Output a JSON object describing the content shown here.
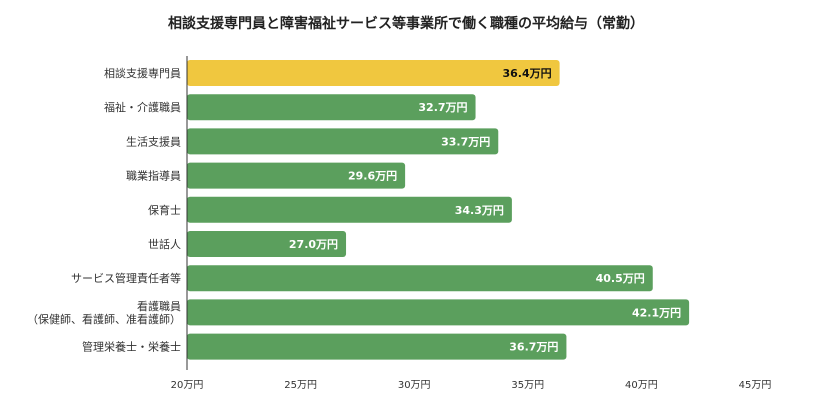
{
  "chart_data": {
    "type": "bar",
    "orientation": "horizontal",
    "title": "相談支援専門員と障害福祉サービス等事業所で働く職種の平均給与（常勤）",
    "categories": [
      [
        "相談支援専門員"
      ],
      [
        "福祉・介護職員"
      ],
      [
        "生活支援員"
      ],
      [
        "職業指導員"
      ],
      [
        "保育士"
      ],
      [
        "世話人"
      ],
      [
        "サービス管理責任者等"
      ],
      [
        "看護職員",
        "（保健師、看護師、准看護師）"
      ],
      [
        "管理栄養士・栄養士"
      ]
    ],
    "values": [
      36.4,
      32.7,
      33.7,
      29.6,
      34.3,
      27.0,
      40.5,
      42.1,
      36.7
    ],
    "value_labels": [
      "36.4万円",
      "32.7万円",
      "33.7万円",
      "29.6万円",
      "34.3万円",
      "27.0万円",
      "40.5万円",
      "42.1万円",
      "36.7万円"
    ],
    "xlim": [
      20,
      45
    ],
    "xticks": [
      20,
      25,
      30,
      35,
      40,
      45
    ],
    "xtick_labels": [
      "20万円",
      "25万円",
      "30万円",
      "35万円",
      "40万円",
      "45万円"
    ],
    "highlight_index": 0,
    "colors": {
      "highlight": "#f0c73f",
      "bar": "#5b9f5d",
      "highlight_label": "#111111",
      "bar_label": "#ffffff",
      "axis": "#333333"
    },
    "grid": false,
    "legend": "none"
  }
}
